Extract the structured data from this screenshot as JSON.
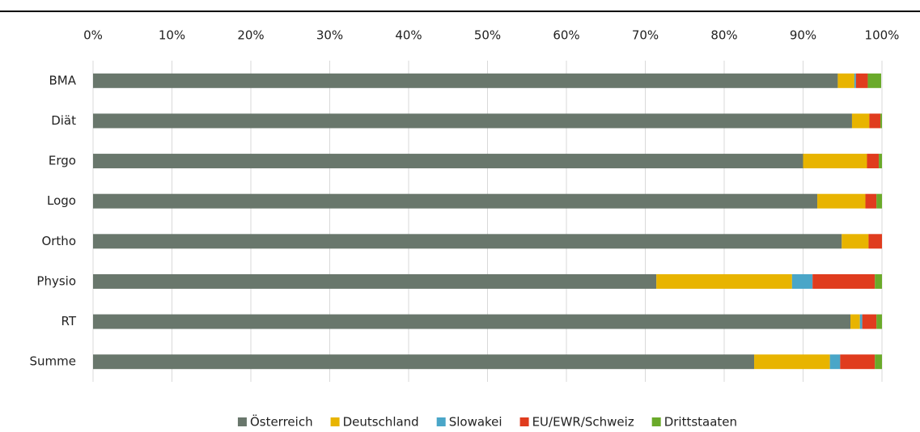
{
  "chart_data": {
    "type": "stacked_bar_horizontal",
    "categories": [
      "BMA",
      "Diät",
      "Ergo",
      "Logo",
      "Ortho",
      "Physio",
      "RT",
      "Summe"
    ],
    "series": [
      {
        "name": "Österreich",
        "color": "#69776c",
        "values": [
          94.4,
          96.2,
          90.0,
          91.8,
          94.9,
          71.4,
          96.0,
          83.8
        ]
      },
      {
        "name": "Deutschland",
        "color": "#e8b400",
        "values": [
          2.1,
          2.2,
          8.1,
          6.1,
          3.4,
          17.2,
          1.2,
          9.6
        ]
      },
      {
        "name": "Slowakei",
        "color": "#4aa6c8",
        "values": [
          0.2,
          0,
          0,
          0,
          0,
          2.6,
          0.3,
          1.3
        ]
      },
      {
        "name": "EU/EWR/Schweiz",
        "color": "#e03c1e",
        "values": [
          1.5,
          1.4,
          1.5,
          1.4,
          1.7,
          7.9,
          1.8,
          4.4
        ]
      },
      {
        "name": "Drittstaaten",
        "color": "#6aaa2a",
        "values": [
          1.7,
          0.2,
          0.4,
          0.7,
          0,
          0.9,
          0.7,
          0.9
        ]
      }
    ],
    "xlim": [
      0,
      100
    ],
    "xticks": [
      {
        "value": 0,
        "label": "0%"
      },
      {
        "value": 10,
        "label": "10%"
      },
      {
        "value": 20,
        "label": "20%"
      },
      {
        "value": 30,
        "label": "30%"
      },
      {
        "value": 40,
        "label": "40%"
      },
      {
        "value": 50,
        "label": "50%"
      },
      {
        "value": 60,
        "label": "60%"
      },
      {
        "value": 70,
        "label": "70%"
      },
      {
        "value": 80,
        "label": "80%"
      },
      {
        "value": 90,
        "label": "90%"
      },
      {
        "value": 100,
        "label": "100%"
      }
    ],
    "grid": true,
    "legend": "bottom"
  }
}
